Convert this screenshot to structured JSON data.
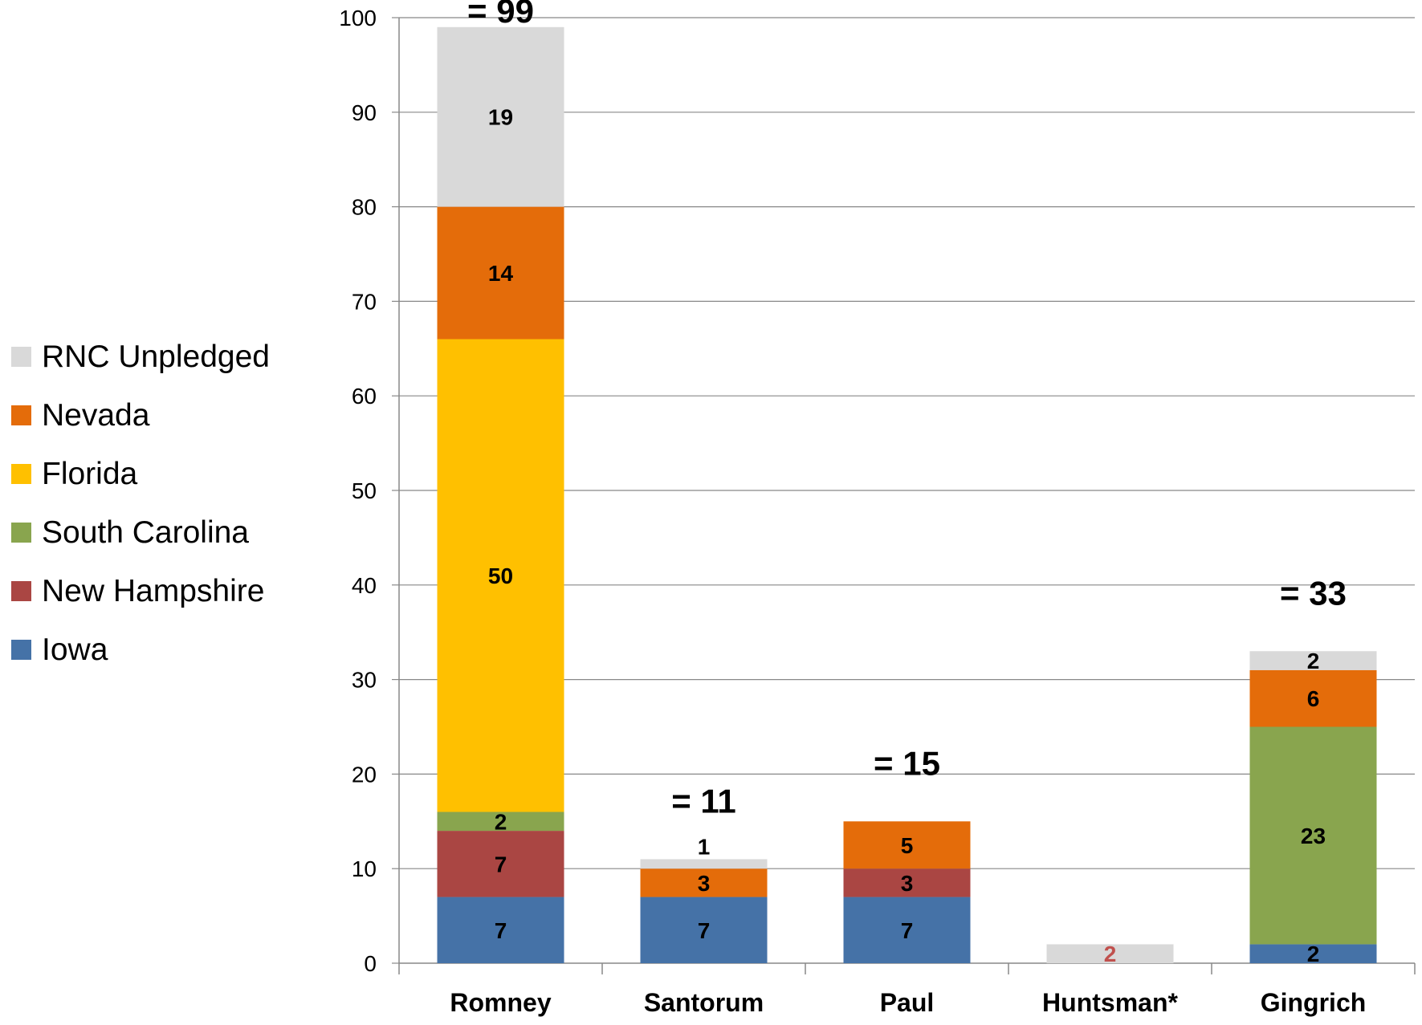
{
  "chart_data": {
    "type": "bar",
    "stacked": true,
    "categories": [
      "Romney",
      "Santorum",
      "Paul",
      "Huntsman*",
      "Gingrich"
    ],
    "ylim": [
      0,
      100
    ],
    "yticks": [
      0,
      10,
      20,
      30,
      40,
      50,
      60,
      70,
      80,
      90,
      100
    ],
    "grid": true,
    "legend_position": "left",
    "series": [
      {
        "name": "Iowa",
        "color": "#4572A7",
        "values": [
          7,
          7,
          7,
          0,
          2
        ]
      },
      {
        "name": "New Hampshire",
        "color": "#AA4643",
        "values": [
          7,
          0,
          3,
          0,
          0
        ]
      },
      {
        "name": "South Carolina",
        "color": "#89A54E",
        "values": [
          2,
          0,
          0,
          0,
          23
        ]
      },
      {
        "name": "Florida",
        "color": "#FFC000",
        "values": [
          50,
          0,
          0,
          0,
          0
        ]
      },
      {
        "name": "Nevada",
        "color": "#E46C0A",
        "values": [
          14,
          3,
          5,
          0,
          6
        ]
      },
      {
        "name": "RNC Unpledged",
        "color": "#D9D9D9",
        "values": [
          19,
          1,
          0,
          2,
          2
        ]
      }
    ],
    "totals": [
      "= 99",
      "= 11",
      "= 15",
      "",
      "= 33"
    ],
    "highlight_label_color": "#C0504D"
  }
}
